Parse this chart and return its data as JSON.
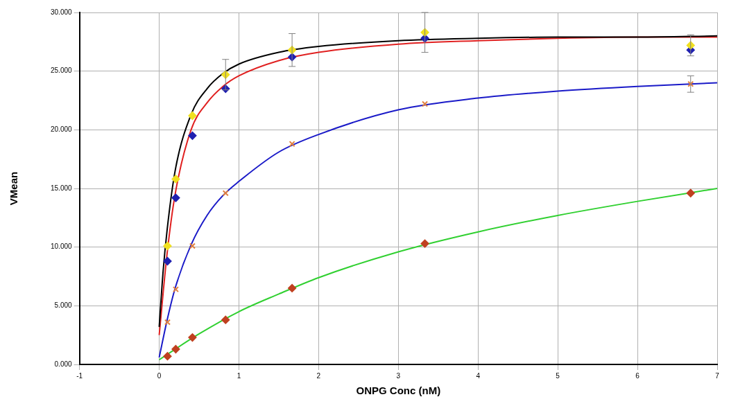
{
  "chart_data": {
    "type": "scatter",
    "xlabel": "ONPG Conc (nM)",
    "ylabel": "VMean",
    "xlim": [
      -1,
      7
    ],
    "xticks": [
      -1,
      0,
      1,
      2,
      3,
      4,
      5,
      6,
      7
    ],
    "ylim": [
      0,
      30
    ],
    "yticks": [
      {
        "value": 0,
        "label": "0.000"
      },
      {
        "value": 5,
        "label": "5.000"
      },
      {
        "value": 10,
        "label": "10.000"
      },
      {
        "value": 15,
        "label": "15.000"
      },
      {
        "value": 20,
        "label": "20.000"
      },
      {
        "value": 25,
        "label": "25.000"
      },
      {
        "value": 30,
        "label": "30.000"
      }
    ],
    "grid": true,
    "legend": false,
    "series": [
      {
        "type": "line",
        "color": "#000000",
        "marker": "none",
        "x": [
          0,
          0.05,
          0.1,
          0.2,
          0.4,
          0.6,
          0.8,
          1,
          1.5,
          2,
          3,
          4,
          5,
          6,
          7
        ],
        "values": [
          3.2,
          8,
          11.5,
          16.5,
          21.3,
          23.5,
          24.8,
          25.6,
          26.6,
          27.1,
          27.6,
          27.8,
          27.9,
          27.9,
          28
        ]
      },
      {
        "type": "line",
        "color": "#e02020",
        "marker": "none",
        "x": [
          0,
          0.1,
          0.2,
          0.4,
          0.6,
          0.8,
          1,
          1.5,
          2,
          3,
          4,
          5,
          6,
          7
        ],
        "values": [
          2.5,
          9.5,
          14.5,
          20,
          22.3,
          23.7,
          24.6,
          25.9,
          26.6,
          27.3,
          27.6,
          27.8,
          27.9,
          27.9
        ]
      },
      {
        "type": "line",
        "color": "#1a1ac8",
        "marker": "none",
        "x": [
          0,
          0.1,
          0.2,
          0.4,
          0.6,
          0.8,
          1,
          1.5,
          2,
          3,
          4,
          5,
          6,
          7
        ],
        "values": [
          0.6,
          3.8,
          6.5,
          10.2,
          12.7,
          14.4,
          15.6,
          18.1,
          19.6,
          21.7,
          22.7,
          23.3,
          23.7,
          24
        ]
      },
      {
        "type": "line",
        "color": "#30d030",
        "marker": "none",
        "x": [
          0,
          0.5,
          1,
          1.5,
          2,
          3,
          4,
          5,
          6,
          7
        ],
        "values": [
          0.4,
          2.6,
          4.5,
          6,
          7.4,
          9.6,
          11.3,
          12.7,
          13.9,
          15
        ]
      },
      {
        "type": "scatter",
        "color": "#f0e020",
        "marker": "diamond",
        "x": [
          0.104,
          0.208,
          0.417,
          0.833,
          1.667,
          3.333,
          6.667
        ],
        "values": [
          10.1,
          15.8,
          21.2,
          24.7,
          26.8,
          28.3,
          27.2
        ],
        "errors": [
          null,
          null,
          null,
          1.3,
          1.4,
          1.7,
          0.9
        ]
      },
      {
        "type": "scatter",
        "color": "#2020b0",
        "marker": "diamond",
        "x": [
          0.104,
          0.208,
          0.417,
          0.833,
          1.667,
          3.333,
          6.667
        ],
        "values": [
          8.8,
          14.2,
          19.5,
          23.5,
          26.2,
          27.8,
          26.8
        ]
      },
      {
        "type": "scatter",
        "color": "#e08040",
        "marker": "cross",
        "x": [
          0.104,
          0.208,
          0.417,
          0.833,
          1.667,
          3.333,
          6.667
        ],
        "values": [
          3.6,
          6.4,
          10.1,
          14.6,
          18.8,
          22.2,
          23.9
        ],
        "errors": [
          null,
          null,
          null,
          null,
          null,
          null,
          0.7
        ]
      },
      {
        "type": "scatter",
        "color": "#c04020",
        "marker": "diamond",
        "x": [
          0.104,
          0.208,
          0.417,
          0.833,
          1.667,
          3.333,
          6.667
        ],
        "values": [
          0.7,
          1.3,
          2.3,
          3.8,
          6.5,
          10.3,
          14.6
        ]
      }
    ]
  }
}
